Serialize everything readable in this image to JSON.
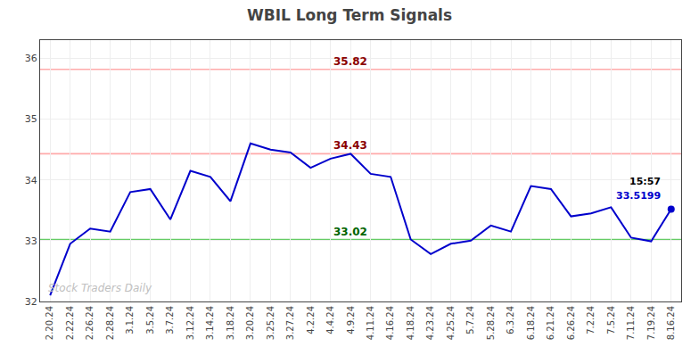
{
  "chart_data": {
    "type": "line",
    "title": "WBIL Long Term Signals",
    "categories": [
      "2.20.24",
      "2.22.24",
      "2.26.24",
      "2.28.24",
      "3.1.24",
      "3.5.24",
      "3.7.24",
      "3.12.24",
      "3.14.24",
      "3.18.24",
      "3.20.24",
      "3.25.24",
      "3.27.24",
      "4.2.24",
      "4.4.24",
      "4.9.24",
      "4.11.24",
      "4.16.24",
      "4.18.24",
      "4.23.24",
      "4.25.24",
      "5.7.24",
      "5.28.24",
      "6.3.24",
      "6.18.24",
      "6.21.24",
      "6.26.24",
      "7.2.24",
      "7.5.24",
      "7.11.24",
      "7.19.24",
      "8.16.24"
    ],
    "values": [
      32.1,
      32.95,
      33.2,
      33.15,
      33.8,
      33.85,
      33.35,
      34.15,
      34.05,
      33.65,
      34.6,
      34.5,
      34.45,
      34.2,
      34.35,
      34.43,
      34.1,
      34.05,
      33.02,
      32.78,
      32.95,
      33.0,
      33.25,
      33.15,
      33.9,
      33.85,
      33.4,
      33.45,
      33.55,
      33.05,
      32.99,
      33.52
    ],
    "color": "#0000cc",
    "ylim": [
      32.0,
      36.3
    ],
    "yticks": [
      32,
      33,
      34,
      35,
      36
    ],
    "grid": true,
    "hlines": [
      {
        "y": 35.82,
        "color": "#ffaaaa",
        "label": "35.82",
        "label_color": "#8b0000",
        "label_x": "4.9.24"
      },
      {
        "y": 34.43,
        "color": "#ffaaaa",
        "label": "34.43",
        "label_color": "#8b0000",
        "label_x": "4.9.24"
      },
      {
        "y": 33.02,
        "color": "#66cc66",
        "label": "33.02",
        "label_color": "#006400",
        "label_x": "4.9.24"
      }
    ],
    "annotations": [
      {
        "text": "15:57",
        "color": "#000000"
      },
      {
        "text": "33.5199",
        "color": "#0000cc"
      }
    ],
    "watermark": "Stock Traders Daily"
  }
}
